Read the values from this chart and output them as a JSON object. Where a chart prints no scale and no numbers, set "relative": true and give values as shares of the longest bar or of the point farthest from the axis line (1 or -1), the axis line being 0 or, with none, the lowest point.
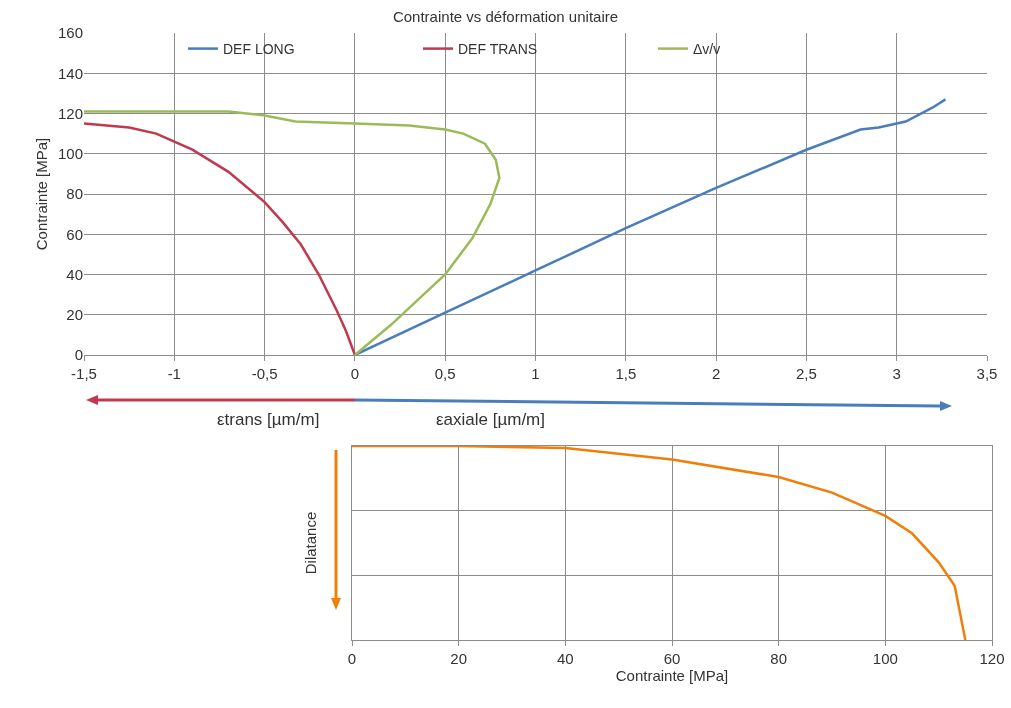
{
  "chart_data": [
    {
      "type": "line",
      "title": "Contrainte vs déformation unitaire",
      "ylabel": "Contrainte [MPa]",
      "annotations": [
        "εtrans [µm/m]",
        "εaxiale [µm/m]"
      ],
      "series": [
        {
          "name": "DEF LONG",
          "color": "#4a7ebb",
          "x": [
            0,
            0.5,
            1,
            1.5,
            2,
            2.5,
            2.8,
            2.9,
            3.05,
            3.2,
            3.27
          ],
          "values": [
            0,
            21,
            42,
            63,
            83,
            102,
            112,
            113,
            116,
            123,
            127
          ]
        },
        {
          "name": "DEF TRANS",
          "color": "#c0394e",
          "x": [
            0,
            -0.05,
            -0.1,
            -0.2,
            -0.3,
            -0.4,
            -0.5,
            -0.7,
            -0.9,
            -1,
            -1.1,
            -1.25,
            -1.5
          ],
          "values": [
            0,
            12,
            22,
            40,
            55,
            66,
            76,
            91,
            102,
            106,
            110,
            113,
            115
          ]
        },
        {
          "name": "Δv/v",
          "color": "#9bbb59",
          "x": [
            0,
            0.2,
            0.5,
            0.65,
            0.75,
            0.8,
            0.78,
            0.72,
            0.6,
            0.5,
            0.3,
            0,
            -0.33,
            -0.5,
            -0.7,
            -1,
            -1.5
          ],
          "values": [
            0,
            15,
            40,
            58,
            75,
            88,
            97,
            105,
            110,
            112,
            114,
            115,
            116,
            119,
            121,
            121,
            121
          ]
        }
      ],
      "xlim": [
        -1.5,
        3.5
      ],
      "xticks": [
        {
          "value": -1.5,
          "label": "-1,5"
        },
        -1,
        {
          "value": -0.5,
          "label": "-0,5"
        },
        0,
        {
          "value": 0.5,
          "label": "0,5"
        },
        1,
        {
          "value": 1.5,
          "label": "1,5"
        },
        2,
        {
          "value": 2.5,
          "label": "2,5"
        },
        3,
        {
          "value": 3.5,
          "label": "3,5"
        }
      ],
      "ylim": [
        0,
        160
      ],
      "yticks": [
        0,
        20,
        40,
        60,
        80,
        100,
        120,
        140,
        160
      ],
      "grid": true,
      "legend": "top",
      "marker": "none",
      "line_style": "solid"
    },
    {
      "type": "line",
      "xlabel": "Contrainte [MPa]",
      "ylabel": "Dilatance",
      "relative": true,
      "series": [
        {
          "color": "#f07f09",
          "x": [
            0,
            20,
            40,
            60,
            80,
            90,
            100,
            105,
            110,
            113,
            115
          ],
          "values": [
            1,
            1,
            0.99,
            0.93,
            0.84,
            0.76,
            0.64,
            0.55,
            0.4,
            0.28,
            0
          ]
        }
      ],
      "xlim": [
        0,
        120
      ],
      "xticks": [
        0,
        20,
        40,
        60,
        80,
        100,
        120
      ],
      "grid": true,
      "legend": false,
      "marker": "none",
      "line_style": "solid",
      "tick_labels": "x"
    }
  ]
}
